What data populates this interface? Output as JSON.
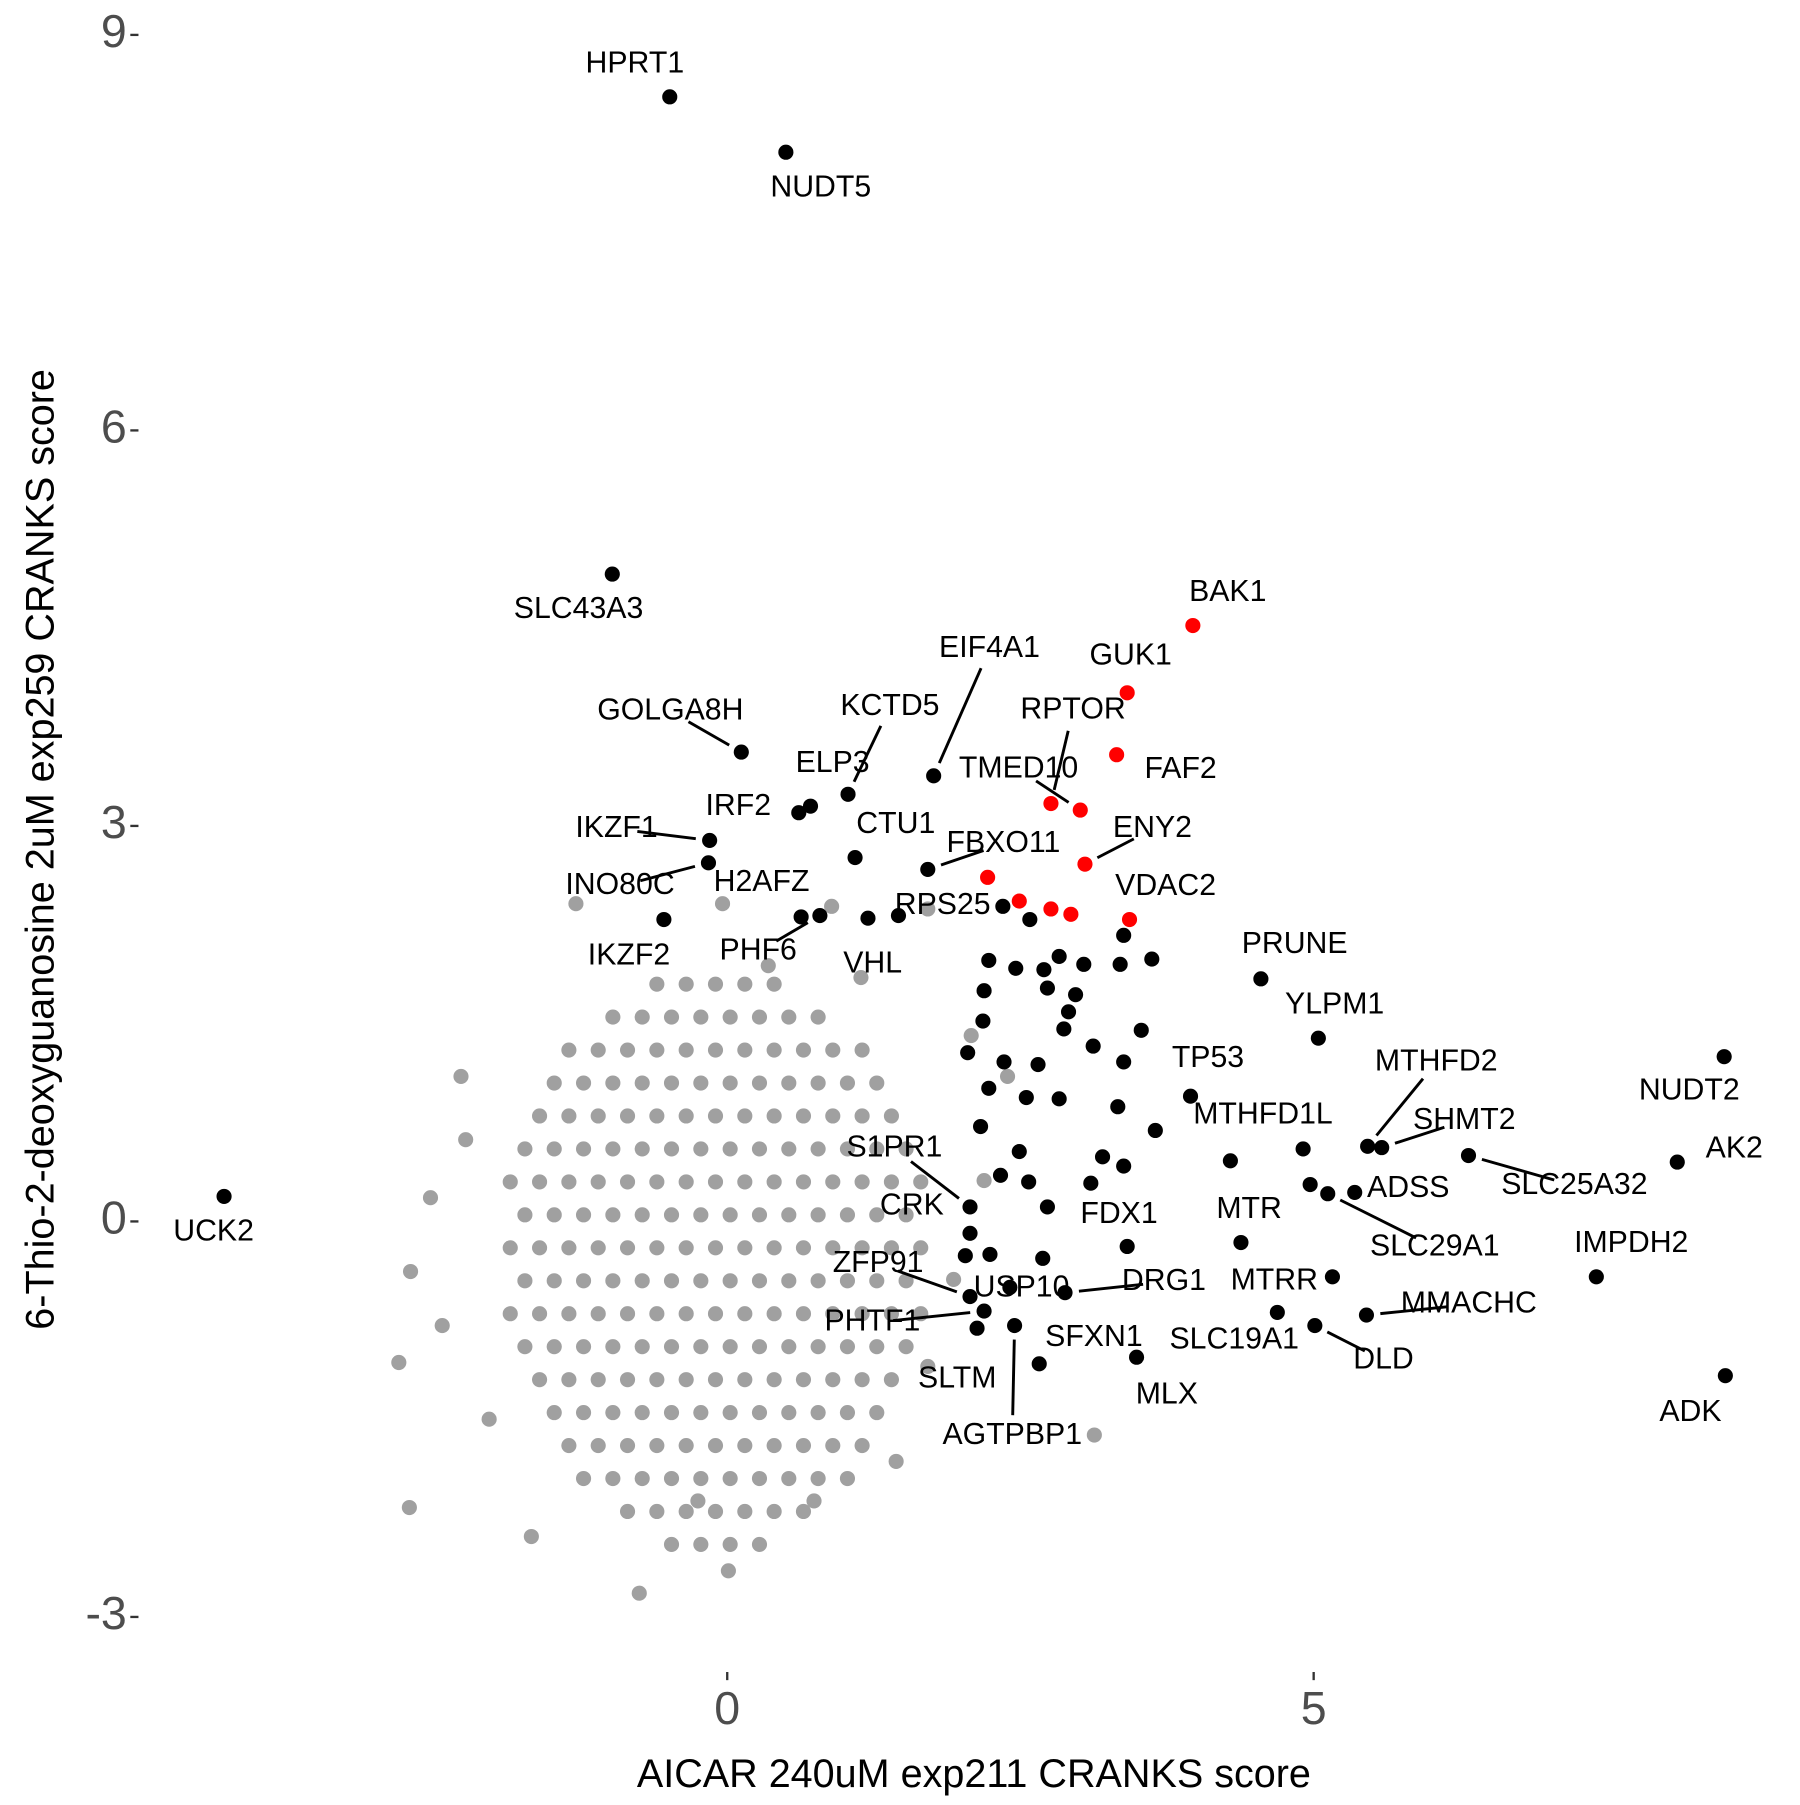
{
  "chart_data": {
    "type": "scatter",
    "x_label": "AICAR 240uM exp211 CRANKS score",
    "y_label": "6-Thio-2-deoxyguanosine 2uM exp259 CRANKS score",
    "xlim": [
      -5.0,
      8.7
    ],
    "ylim": [
      -3.4,
      9.15
    ],
    "xticks": [
      0,
      5
    ],
    "yticks": [
      -3,
      0,
      3,
      6,
      9
    ],
    "grid": false,
    "series": [
      {
        "color": "#a0a0a0",
        "x": [
          -0.6,
          -0.35,
          -0.1,
          0.15,
          0.4,
          -0.975,
          -0.725,
          -0.475,
          -0.225,
          0.025,
          0.275,
          0.525,
          0.775,
          -1.35,
          -1.1,
          -0.85,
          -0.6,
          -0.35,
          -0.1,
          0.15,
          0.4,
          0.65,
          0.9,
          1.15,
          -1.475,
          -1.225,
          -0.975,
          -0.725,
          -0.475,
          -0.225,
          0.025,
          0.275,
          0.525,
          0.775,
          1.025,
          1.275,
          -1.6,
          -1.35,
          -1.1,
          -0.85,
          -0.6,
          -0.35,
          -0.1,
          0.15,
          0.4,
          0.65,
          0.9,
          1.15,
          1.4,
          -1.725,
          -1.475,
          -1.225,
          -0.975,
          -0.725,
          -0.475,
          -0.225,
          0.025,
          0.275,
          0.525,
          0.775,
          1.025,
          1.275,
          1.525,
          -1.85,
          -1.6,
          -1.35,
          -1.1,
          -0.85,
          -0.6,
          -0.35,
          -0.1,
          0.15,
          0.4,
          0.65,
          0.9,
          1.15,
          1.4,
          1.65,
          -1.725,
          -1.475,
          -1.225,
          -0.975,
          -0.725,
          -0.475,
          -0.225,
          0.025,
          0.275,
          0.525,
          0.775,
          1.025,
          1.275,
          1.525,
          -1.85,
          -1.6,
          -1.35,
          -1.1,
          -0.85,
          -0.6,
          -0.35,
          -0.1,
          0.15,
          0.4,
          0.65,
          0.9,
          1.15,
          1.4,
          1.65,
          -1.725,
          -1.475,
          -1.225,
          -0.975,
          -0.725,
          -0.475,
          -0.225,
          0.025,
          0.275,
          0.525,
          0.775,
          1.025,
          1.275,
          1.525,
          -1.85,
          -1.6,
          -1.35,
          -1.1,
          -0.85,
          -0.6,
          -0.35,
          -0.1,
          0.15,
          0.4,
          0.65,
          0.9,
          1.15,
          1.4,
          1.65,
          -1.725,
          -1.475,
          -1.225,
          -0.975,
          -0.725,
          -0.475,
          -0.225,
          0.025,
          0.275,
          0.525,
          0.775,
          1.025,
          1.275,
          1.525,
          -1.6,
          -1.35,
          -1.1,
          -0.85,
          -0.6,
          -0.35,
          -0.1,
          0.15,
          0.4,
          0.65,
          0.9,
          1.15,
          1.4,
          -1.475,
          -1.225,
          -0.975,
          -0.725,
          -0.475,
          -0.225,
          0.025,
          0.275,
          0.525,
          0.775,
          1.025,
          1.275,
          -1.35,
          -1.1,
          -0.85,
          -0.6,
          -0.35,
          -0.1,
          0.15,
          0.4,
          0.65,
          0.9,
          1.15,
          -1.225,
          -0.975,
          -0.725,
          -0.475,
          -0.225,
          0.025,
          0.275,
          0.525,
          0.775,
          1.025,
          -0.85,
          -0.6,
          -0.35,
          -0.1,
          0.15,
          0.4,
          0.65,
          -0.475,
          -0.225,
          0.025,
          0.275,
          -2.8,
          -2.71,
          -2.7,
          -2.27,
          -1.67,
          -0.75,
          0.01,
          1.44,
          1.71,
          2.19,
          2.08,
          2.39,
          3.13,
          1.71,
          -1.29,
          -0.04,
          0.89,
          -2.43,
          -2.03,
          -0.25,
          0.74,
          -2.23,
          0.35,
          1.14,
          1.93,
          -2.53
        ],
        "values": [
          1.8,
          1.8,
          1.8,
          1.8,
          1.8,
          1.55,
          1.55,
          1.55,
          1.55,
          1.55,
          1.55,
          1.55,
          1.55,
          1.3,
          1.3,
          1.3,
          1.3,
          1.3,
          1.3,
          1.3,
          1.3,
          1.3,
          1.3,
          1.3,
          1.05,
          1.05,
          1.05,
          1.05,
          1.05,
          1.05,
          1.05,
          1.05,
          1.05,
          1.05,
          1.05,
          1.05,
          0.8,
          0.8,
          0.8,
          0.8,
          0.8,
          0.8,
          0.8,
          0.8,
          0.8,
          0.8,
          0.8,
          0.8,
          0.8,
          0.55,
          0.55,
          0.55,
          0.55,
          0.55,
          0.55,
          0.55,
          0.55,
          0.55,
          0.55,
          0.55,
          0.55,
          0.55,
          0.55,
          0.3,
          0.3,
          0.3,
          0.3,
          0.3,
          0.3,
          0.3,
          0.3,
          0.3,
          0.3,
          0.3,
          0.3,
          0.3,
          0.3,
          0.3,
          0.05,
          0.05,
          0.05,
          0.05,
          0.05,
          0.05,
          0.05,
          0.05,
          0.05,
          0.05,
          0.05,
          0.05,
          0.05,
          0.05,
          -0.2,
          -0.2,
          -0.2,
          -0.2,
          -0.2,
          -0.2,
          -0.2,
          -0.2,
          -0.2,
          -0.2,
          -0.2,
          -0.2,
          -0.2,
          -0.2,
          -0.2,
          -0.45,
          -0.45,
          -0.45,
          -0.45,
          -0.45,
          -0.45,
          -0.45,
          -0.45,
          -0.45,
          -0.45,
          -0.45,
          -0.45,
          -0.45,
          -0.45,
          -0.7,
          -0.7,
          -0.7,
          -0.7,
          -0.7,
          -0.7,
          -0.7,
          -0.7,
          -0.7,
          -0.7,
          -0.7,
          -0.7,
          -0.7,
          -0.7,
          -0.7,
          -0.95,
          -0.95,
          -0.95,
          -0.95,
          -0.95,
          -0.95,
          -0.95,
          -0.95,
          -0.95,
          -0.95,
          -0.95,
          -0.95,
          -0.95,
          -0.95,
          -1.2,
          -1.2,
          -1.2,
          -1.2,
          -1.2,
          -1.2,
          -1.2,
          -1.2,
          -1.2,
          -1.2,
          -1.2,
          -1.2,
          -1.2,
          -1.45,
          -1.45,
          -1.45,
          -1.45,
          -1.45,
          -1.45,
          -1.45,
          -1.45,
          -1.45,
          -1.45,
          -1.45,
          -1.45,
          -1.7,
          -1.7,
          -1.7,
          -1.7,
          -1.7,
          -1.7,
          -1.7,
          -1.7,
          -1.7,
          -1.7,
          -1.7,
          -1.95,
          -1.95,
          -1.95,
          -1.95,
          -1.95,
          -1.95,
          -1.95,
          -1.95,
          -1.95,
          -1.95,
          -2.2,
          -2.2,
          -2.2,
          -2.2,
          -2.2,
          -2.2,
          -2.2,
          -2.45,
          -2.45,
          -2.45,
          -2.45,
          -1.07,
          -2.17,
          -0.38,
          1.1,
          -2.39,
          -2.82,
          -2.65,
          -1.82,
          -1.1,
          0.31,
          1.41,
          1.1,
          -1.62,
          2.37,
          2.41,
          2.41,
          2.39,
          -0.79,
          -1.5,
          -2.12,
          -2.12,
          0.62,
          1.94,
          1.85,
          -0.44,
          0.18
        ]
      },
      {
        "color": "#000000",
        "x": [
          -0.49,
          0.5,
          -0.98,
          -4.29,
          0.12,
          0.61,
          0.71,
          1.03,
          -0.15,
          -0.16,
          -0.54,
          1.76,
          1.09,
          1.71,
          0.63,
          0.79,
          1.46,
          1.2,
          4.55,
          5.04,
          3.95,
          5.46,
          5.58,
          6.32,
          8.5,
          8.1,
          4.29,
          5.35,
          5.12,
          4.38,
          3.41,
          7.41,
          5.16,
          5.45,
          5.01,
          4.69,
          2.88,
          3.49,
          2.66,
          2.45,
          8.51,
          2.41,
          2.07,
          2.19,
          2.13,
          2.07,
          2.07,
          2.35,
          2.58,
          2.23,
          2.46,
          2.7,
          2.83,
          3.04,
          2.97,
          2.73,
          2.91,
          2.87,
          2.19,
          2.18,
          2.05,
          2.36,
          2.65,
          3.12,
          3.38,
          3.53,
          3.38,
          3.35,
          3.62,
          2.23,
          2.16,
          2.55,
          2.83,
          3.33,
          3.65,
          3.2,
          3.38,
          3.1,
          2.49,
          2.73,
          2.57,
          2.33,
          2.24,
          2.69,
          2.03,
          4.91,
          4.97
        ],
        "values": [
          8.53,
          8.11,
          4.91,
          0.19,
          3.56,
          3.1,
          3.15,
          3.24,
          2.89,
          2.72,
          2.29,
          3.38,
          2.76,
          2.67,
          2.31,
          2.32,
          2.32,
          2.3,
          1.84,
          1.39,
          0.95,
          0.57,
          0.56,
          0.5,
          1.25,
          0.45,
          0.46,
          0.22,
          0.21,
          -0.16,
          -0.19,
          -0.42,
          -0.42,
          -0.71,
          -0.79,
          -0.69,
          -0.54,
          -1.03,
          -1.08,
          -0.79,
          -1.17,
          -0.5,
          -0.57,
          -0.68,
          -0.81,
          0.11,
          -0.09,
          2.39,
          2.29,
          1.98,
          1.92,
          1.91,
          2.01,
          1.95,
          1.72,
          1.77,
          1.59,
          1.46,
          1.75,
          1.52,
          1.28,
          1.21,
          1.19,
          1.33,
          1.21,
          1.45,
          2.17,
          1.95,
          1.99,
          1.01,
          0.72,
          0.94,
          0.93,
          0.87,
          0.69,
          0.49,
          0.42,
          0.29,
          0.53,
          0.11,
          0.3,
          0.35,
          -0.25,
          -0.28,
          -0.26,
          0.55,
          0.28
        ],
        "labels": [
          "HPRT1",
          "NUDT5",
          "SLC43A3",
          "UCK2",
          "GOLGA8H",
          "IRF2",
          "ELP3",
          "KCTD5",
          "IKZF1",
          "INO80C",
          "IKZF2",
          "EIF4A1",
          "CTU1",
          "FBXO11",
          "H2AFZ",
          "PHF6",
          "RPS25",
          "VHL",
          "PRUNE",
          "YLPM1",
          "TP53",
          "MTHFD2",
          "SHMT2",
          "SLC25A32",
          "NUDT2",
          "AK2",
          "MTHFD1L",
          "ADSS",
          "SLC29A1",
          "MTR",
          "FDX1",
          "IMPDH2",
          "MTRR",
          "MMACHC",
          "DLD",
          "SLC19A1",
          "DRG1",
          "MLX",
          "SFXN1",
          "AGTPBP1",
          "ADK",
          "USP10",
          "ZFP91",
          "PHTF1",
          "SLTM",
          "S1PR1",
          "CRK",
          null,
          null,
          null,
          null,
          null,
          null,
          null,
          null,
          null,
          null,
          null,
          null,
          null,
          null,
          null,
          null,
          null,
          null,
          null,
          null,
          null,
          null,
          null,
          null,
          null,
          null,
          null,
          null,
          null,
          null,
          null,
          null,
          null,
          null,
          null,
          null,
          null,
          null,
          null,
          null
        ]
      },
      {
        "color": "#ff0000",
        "x": [
          3.97,
          3.41,
          3.32,
          2.76,
          3.01,
          3.05,
          3.43,
          2.22,
          2.49,
          2.76,
          2.93
        ],
        "values": [
          4.52,
          4.01,
          3.54,
          3.17,
          3.12,
          2.71,
          2.29,
          2.61,
          2.43,
          2.37,
          2.33
        ],
        "labels": [
          "BAK1",
          "GUK1",
          "FAF2",
          "RPTOR",
          "TMED10",
          "ENY2",
          "VDAC2",
          null,
          null,
          null,
          null
        ]
      }
    ]
  }
}
